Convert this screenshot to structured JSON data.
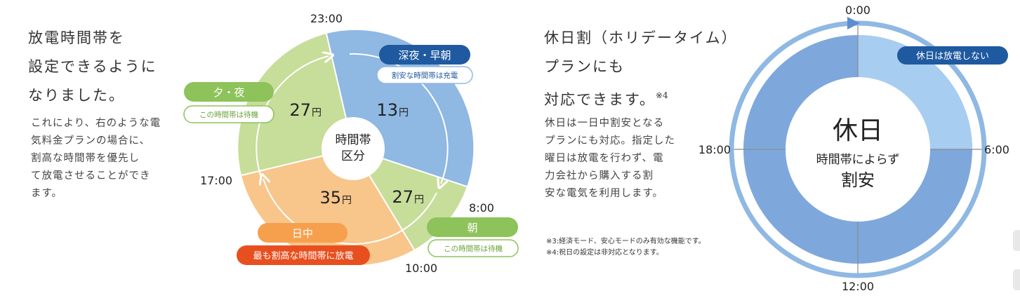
{
  "left": {
    "heading": [
      "放電時間帯を",
      "設定できるように",
      "なりました。"
    ],
    "body": [
      "これにより、右のような電",
      "気料金プランの場合に、",
      "割高な時間帯を優先し",
      "て放電させることができ",
      "ます。"
    ]
  },
  "pie": {
    "center_label": [
      "時間帯",
      "区分"
    ],
    "time_labels": {
      "t2300": "23:00",
      "t0800": "8:00",
      "t1000": "10:00",
      "t1700": "17:00"
    },
    "segments": {
      "midnight": {
        "price": "13",
        "title": "深夜・早朝",
        "subtitle": "割安な時間帯は充電"
      },
      "morning": {
        "price": "27",
        "title": "朝",
        "subtitle": "この時間帯は待機"
      },
      "daytime": {
        "price": "35",
        "title": "日中",
        "subtitle": "最も割高な時間帯に放電"
      },
      "evening": {
        "price": "27",
        "title": "夕・夜",
        "subtitle": "この時間帯は待機"
      }
    },
    "yen": "円"
  },
  "holiday": {
    "heading_line1": "休日割（ホリデータイム）",
    "heading_line2": "プランにも",
    "heading_line3": "対応できます。",
    "heading_note": "※4",
    "body": [
      "休日は一日中割安となる",
      "プランにも対応。指定した",
      "曜日は放電を行わず、電",
      "力会社から購入する割",
      "安な電気を利用します。"
    ],
    "notes": [
      "※3:経済モード、安心モードのみ有効な機能です。",
      "※4:祝日の設定は非対応となります。"
    ]
  },
  "clock": {
    "top": "0:00",
    "right": "6:00",
    "bottom": "12:00",
    "left": "18:00",
    "center_big": "休日",
    "center_line1": "時間帯によらず",
    "center_line2": "割安",
    "badge": "休日は放電しない"
  },
  "colors": {
    "blue": "#8fb8e3",
    "green": "#c7dd9a",
    "orange": "#f8c58b",
    "navy": "#1f5aa0",
    "green_badge": "#8dc35a",
    "orange_badge": "#f6a04d",
    "red_badge": "#e84f1f"
  }
}
